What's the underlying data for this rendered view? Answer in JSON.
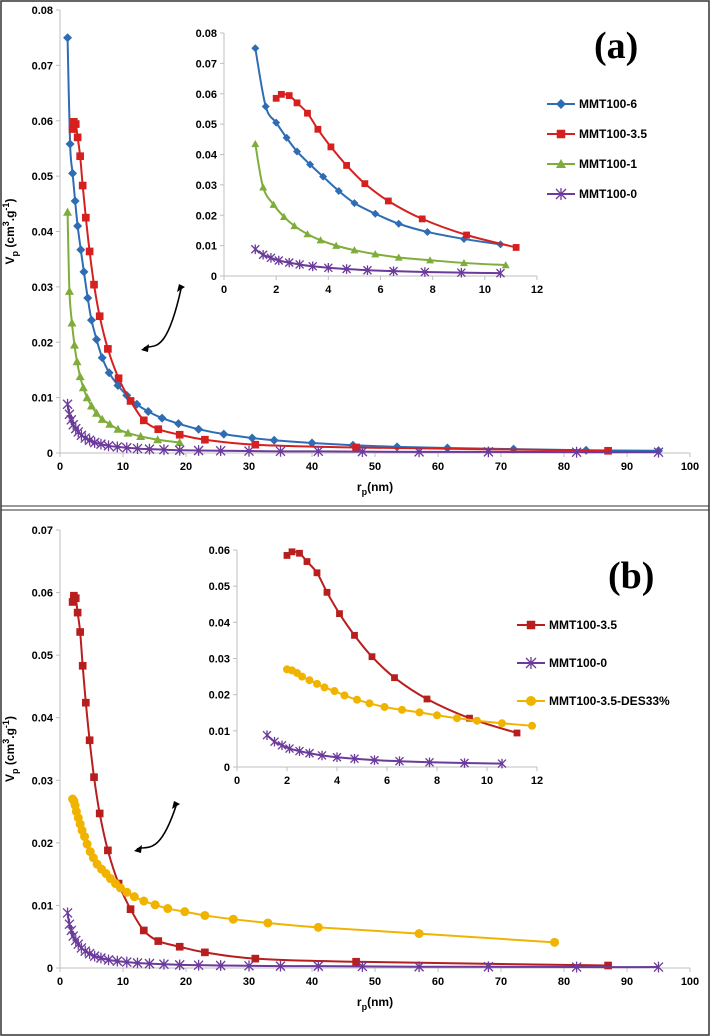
{
  "chart_data": [
    {
      "type": "line",
      "panel_label": "(a)",
      "xlabel_main": "r",
      "xlabel_sub": "p",
      "xlabel_unit": "(nm)",
      "ylabel_main": "V",
      "ylabel_sub": "p",
      "ylabel_unit": "(cm",
      "ylabel_sup1": "3",
      "ylabel_mid": ".g",
      "ylabel_sup2": "-1",
      "ylabel_end": ")",
      "xlim": [
        0,
        100
      ],
      "ylim": [
        0,
        0.08
      ],
      "xticks": [
        "0",
        "10",
        "20",
        "30",
        "40",
        "50",
        "60",
        "70",
        "80",
        "90",
        "100"
      ],
      "yticks": [
        "0",
        "0.01",
        "0.02",
        "0.03",
        "0.04",
        "0.05",
        "0.06",
        "0.07",
        "0.08"
      ],
      "legend_position": "right",
      "series": [
        {
          "name": "MMT100-6",
          "color": "#2e6db4",
          "marker": "diamond",
          "x": [
            1.2,
            1.6,
            2.0,
            2.4,
            2.8,
            3.3,
            3.8,
            4.4,
            5.0,
            5.8,
            6.7,
            7.8,
            9.2,
            10.6,
            12.2,
            14.0,
            16.2,
            18.8,
            22.0,
            26.0,
            30.5,
            34,
            40,
            46.5,
            53.5,
            61.5,
            72,
            83.5,
            95
          ],
          "y": [
            0.075,
            0.0558,
            0.0505,
            0.0455,
            0.041,
            0.0367,
            0.0327,
            0.028,
            0.024,
            0.0205,
            0.0172,
            0.0145,
            0.0122,
            0.0104,
            0.0088,
            0.0075,
            0.0063,
            0.0053,
            0.0043,
            0.0034,
            0.0027,
            0.0023,
            0.0018,
            0.0014,
            0.0011,
            0.0009,
            0.0007,
            0.0005,
            0.0004
          ]
        },
        {
          "name": "MMT100-3.5",
          "color": "#d62020",
          "marker": "square",
          "x": [
            2.0,
            2.2,
            2.5,
            2.8,
            3.2,
            3.6,
            4.1,
            4.7,
            5.4,
            6.3,
            7.6,
            9.3,
            11.2,
            13.3,
            15.6,
            19.0,
            23.0,
            31.0,
            47.0,
            87.0
          ],
          "y": [
            0.0585,
            0.0598,
            0.0594,
            0.057,
            0.0536,
            0.0483,
            0.0425,
            0.0364,
            0.0304,
            0.0247,
            0.0188,
            0.0135,
            0.0094,
            0.0059,
            0.0043,
            0.0033,
            0.0024,
            0.0015,
            0.001,
            0.0004
          ]
        },
        {
          "name": "MMT100-1",
          "color": "#7fad3a",
          "marker": "triangle",
          "x": [
            1.2,
            1.5,
            1.9,
            2.3,
            2.7,
            3.2,
            3.7,
            4.3,
            5.0,
            5.8,
            6.7,
            7.9,
            9.2,
            10.8,
            12.8,
            15.5,
            19.0
          ],
          "y": [
            0.0435,
            0.0292,
            0.0235,
            0.0195,
            0.0165,
            0.0138,
            0.0118,
            0.01,
            0.0085,
            0.0072,
            0.0061,
            0.0052,
            0.0043,
            0.0036,
            0.003,
            0.0024,
            0.0019
          ]
        },
        {
          "name": "MMT100-0",
          "color": "#6b3a9b",
          "marker": "star",
          "x": [
            1.2,
            1.5,
            1.8,
            2.1,
            2.5,
            2.9,
            3.4,
            4.0,
            4.7,
            5.5,
            6.5,
            7.7,
            9.1,
            10.6,
            12.3,
            14.2,
            16.5,
            19,
            22,
            25.5,
            30,
            35,
            41,
            48,
            57,
            68,
            82,
            95
          ],
          "y": [
            0.0088,
            0.007,
            0.006,
            0.0051,
            0.0044,
            0.0038,
            0.0032,
            0.0027,
            0.0023,
            0.0019,
            0.0016,
            0.0013,
            0.0011,
            0.00095,
            0.0008,
            0.0007,
            0.0006,
            0.0005,
            0.00045,
            0.0004,
            0.00035,
            0.0003,
            0.0003,
            0.00025,
            0.0002,
            0.0002,
            0.00015,
            0.00015
          ]
        }
      ],
      "inset": {
        "xlim": [
          0,
          12
        ],
        "ylim": [
          0,
          0.08
        ],
        "xticks": [
          "0",
          "2",
          "4",
          "6",
          "8",
          "10",
          "12"
        ],
        "yticks": [
          "0",
          "0.01",
          "0.02",
          "0.03",
          "0.04",
          "0.05",
          "0.06",
          "0.07",
          "0.08"
        ]
      }
    },
    {
      "type": "line",
      "panel_label": "(b)",
      "xlabel_main": "r",
      "xlabel_sub": "p",
      "xlabel_unit": "(nm)",
      "ylabel_main": "V",
      "ylabel_sub": "p",
      "ylabel_unit": "(cm",
      "ylabel_sup1": "3",
      "ylabel_mid": ".g",
      "ylabel_sup2": "-1",
      "ylabel_end": ")",
      "xlim": [
        0,
        100
      ],
      "ylim": [
        0,
        0.07
      ],
      "xticks": [
        "0",
        "10",
        "20",
        "30",
        "40",
        "50",
        "60",
        "70",
        "80",
        "90",
        "100"
      ],
      "yticks": [
        "0",
        "0.01",
        "0.02",
        "0.03",
        "0.04",
        "0.05",
        "0.06",
        "0.07"
      ],
      "legend_position": "right",
      "series": [
        {
          "name": "MMT100-3.5",
          "color": "#b81e1e",
          "marker": "square",
          "x": [
            2.0,
            2.2,
            2.5,
            2.8,
            3.2,
            3.6,
            4.1,
            4.7,
            5.4,
            6.3,
            7.6,
            9.3,
            11.2,
            13.3,
            15.6,
            19.0,
            23.0,
            31.0,
            47.0,
            87.0
          ],
          "y": [
            0.0585,
            0.0595,
            0.0591,
            0.0568,
            0.0537,
            0.0483,
            0.0424,
            0.0364,
            0.0305,
            0.0247,
            0.0188,
            0.0135,
            0.0094,
            0.006,
            0.0043,
            0.0034,
            0.0025,
            0.0015,
            0.001,
            0.0004
          ]
        },
        {
          "name": "MMT100-0",
          "color": "#6b3a9b",
          "marker": "star",
          "x": [
            1.2,
            1.5,
            1.8,
            2.1,
            2.5,
            2.9,
            3.4,
            4.0,
            4.7,
            5.5,
            6.5,
            7.7,
            9.1,
            10.6,
            12.3,
            14.2,
            16.5,
            19,
            22,
            25.5,
            30,
            35,
            41,
            48,
            57,
            68,
            82,
            95
          ],
          "y": [
            0.0088,
            0.007,
            0.006,
            0.0051,
            0.0044,
            0.0038,
            0.0032,
            0.0027,
            0.0023,
            0.0019,
            0.0016,
            0.0013,
            0.0011,
            0.00095,
            0.0008,
            0.0007,
            0.0006,
            0.0005,
            0.00045,
            0.0004,
            0.00035,
            0.0003,
            0.0003,
            0.00025,
            0.0002,
            0.0002,
            0.00015,
            0.00015
          ]
        },
        {
          "name": "MMT100-3.5-DES33%",
          "color": "#f0b400",
          "marker": "circle",
          "x": [
            2.0,
            2.2,
            2.4,
            2.6,
            2.9,
            3.2,
            3.5,
            3.9,
            4.3,
            4.8,
            5.3,
            5.9,
            6.6,
            7.3,
            8.0,
            8.8,
            9.6,
            10.6,
            11.8,
            13.3,
            15.1,
            17.1,
            19.8,
            23.0,
            27.5,
            33.0,
            41.0,
            57.0,
            78.5
          ],
          "y": [
            0.027,
            0.0267,
            0.026,
            0.025,
            0.024,
            0.023,
            0.022,
            0.021,
            0.0198,
            0.0186,
            0.0176,
            0.0166,
            0.0158,
            0.0151,
            0.0143,
            0.0135,
            0.0128,
            0.0121,
            0.0114,
            0.0107,
            0.0101,
            0.0095,
            0.009,
            0.0084,
            0.0078,
            0.0072,
            0.0065,
            0.0055,
            0.0041
          ]
        }
      ],
      "inset": {
        "xlim": [
          0,
          12
        ],
        "ylim": [
          0,
          0.06
        ],
        "xticks": [
          "0",
          "2",
          "4",
          "6",
          "8",
          "10",
          "12"
        ],
        "yticks": [
          "0",
          "0.01",
          "0.02",
          "0.03",
          "0.04",
          "0.05",
          "0.06"
        ]
      }
    }
  ]
}
